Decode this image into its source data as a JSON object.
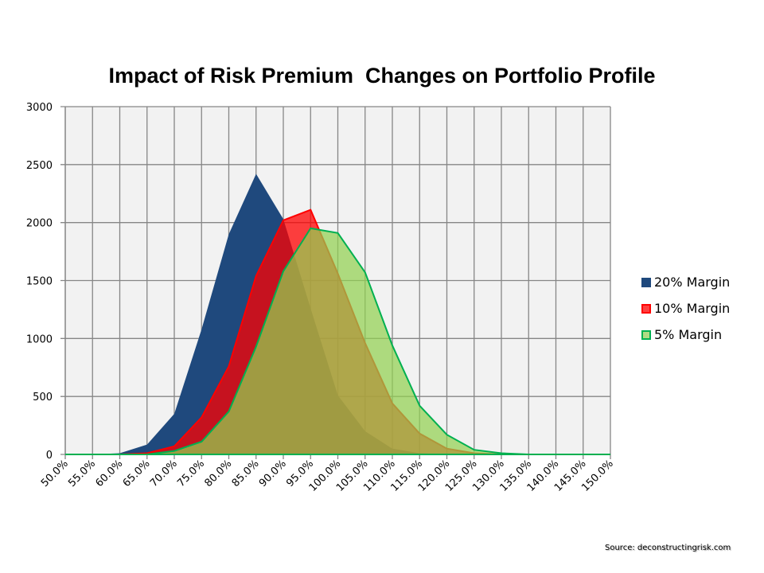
{
  "chart_data": {
    "type": "area",
    "title": "Impact of Risk Premium  Changes on Portfolio Profile",
    "xlabel": "",
    "ylabel": "",
    "ylim": [
      0,
      3000
    ],
    "yticks": [
      "0",
      "500",
      "1000",
      "1500",
      "2000",
      "2500",
      "3000"
    ],
    "ytick_values": [
      0,
      500,
      1000,
      1500,
      2000,
      2500,
      3000
    ],
    "grid": true,
    "legend_position": "right",
    "categories": [
      "50.0%",
      "55.0%",
      "60.0%",
      "65.0%",
      "70.0%",
      "75.0%",
      "80.0%",
      "85.0%",
      "90.0%",
      "95.0%",
      "100.0%",
      "105.0%",
      "110.0%",
      "115.0%",
      "120.0%",
      "125.0%",
      "130.0%",
      "135.0%",
      "140.0%",
      "145.0%",
      "150.0%"
    ],
    "series": [
      {
        "name": "20% Margin",
        "fill": "#1f497d",
        "stroke": "none",
        "opacity": 1,
        "values": [
          0,
          0,
          10,
          85,
          350,
          1080,
          1900,
          2420,
          2030,
          1260,
          510,
          200,
          50,
          10,
          0,
          0,
          0,
          0,
          0,
          0,
          0
        ]
      },
      {
        "name": "10% Margin",
        "fill": "#ff0000",
        "stroke": "#ff0000",
        "opacity": 0.75,
        "values": [
          0,
          0,
          0,
          10,
          70,
          320,
          760,
          1540,
          2020,
          2110,
          1560,
          960,
          440,
          180,
          50,
          10,
          0,
          0,
          0,
          0,
          0
        ]
      },
      {
        "name": "5% Margin",
        "fill": "#92d050",
        "stroke": "#00b050",
        "opacity": 0.72,
        "values": [
          0,
          0,
          0,
          0,
          30,
          110,
          370,
          930,
          1580,
          1950,
          1910,
          1570,
          940,
          420,
          170,
          40,
          10,
          0,
          0,
          0,
          0
        ]
      }
    ]
  },
  "source": "Source: deconstructingrisk.com"
}
